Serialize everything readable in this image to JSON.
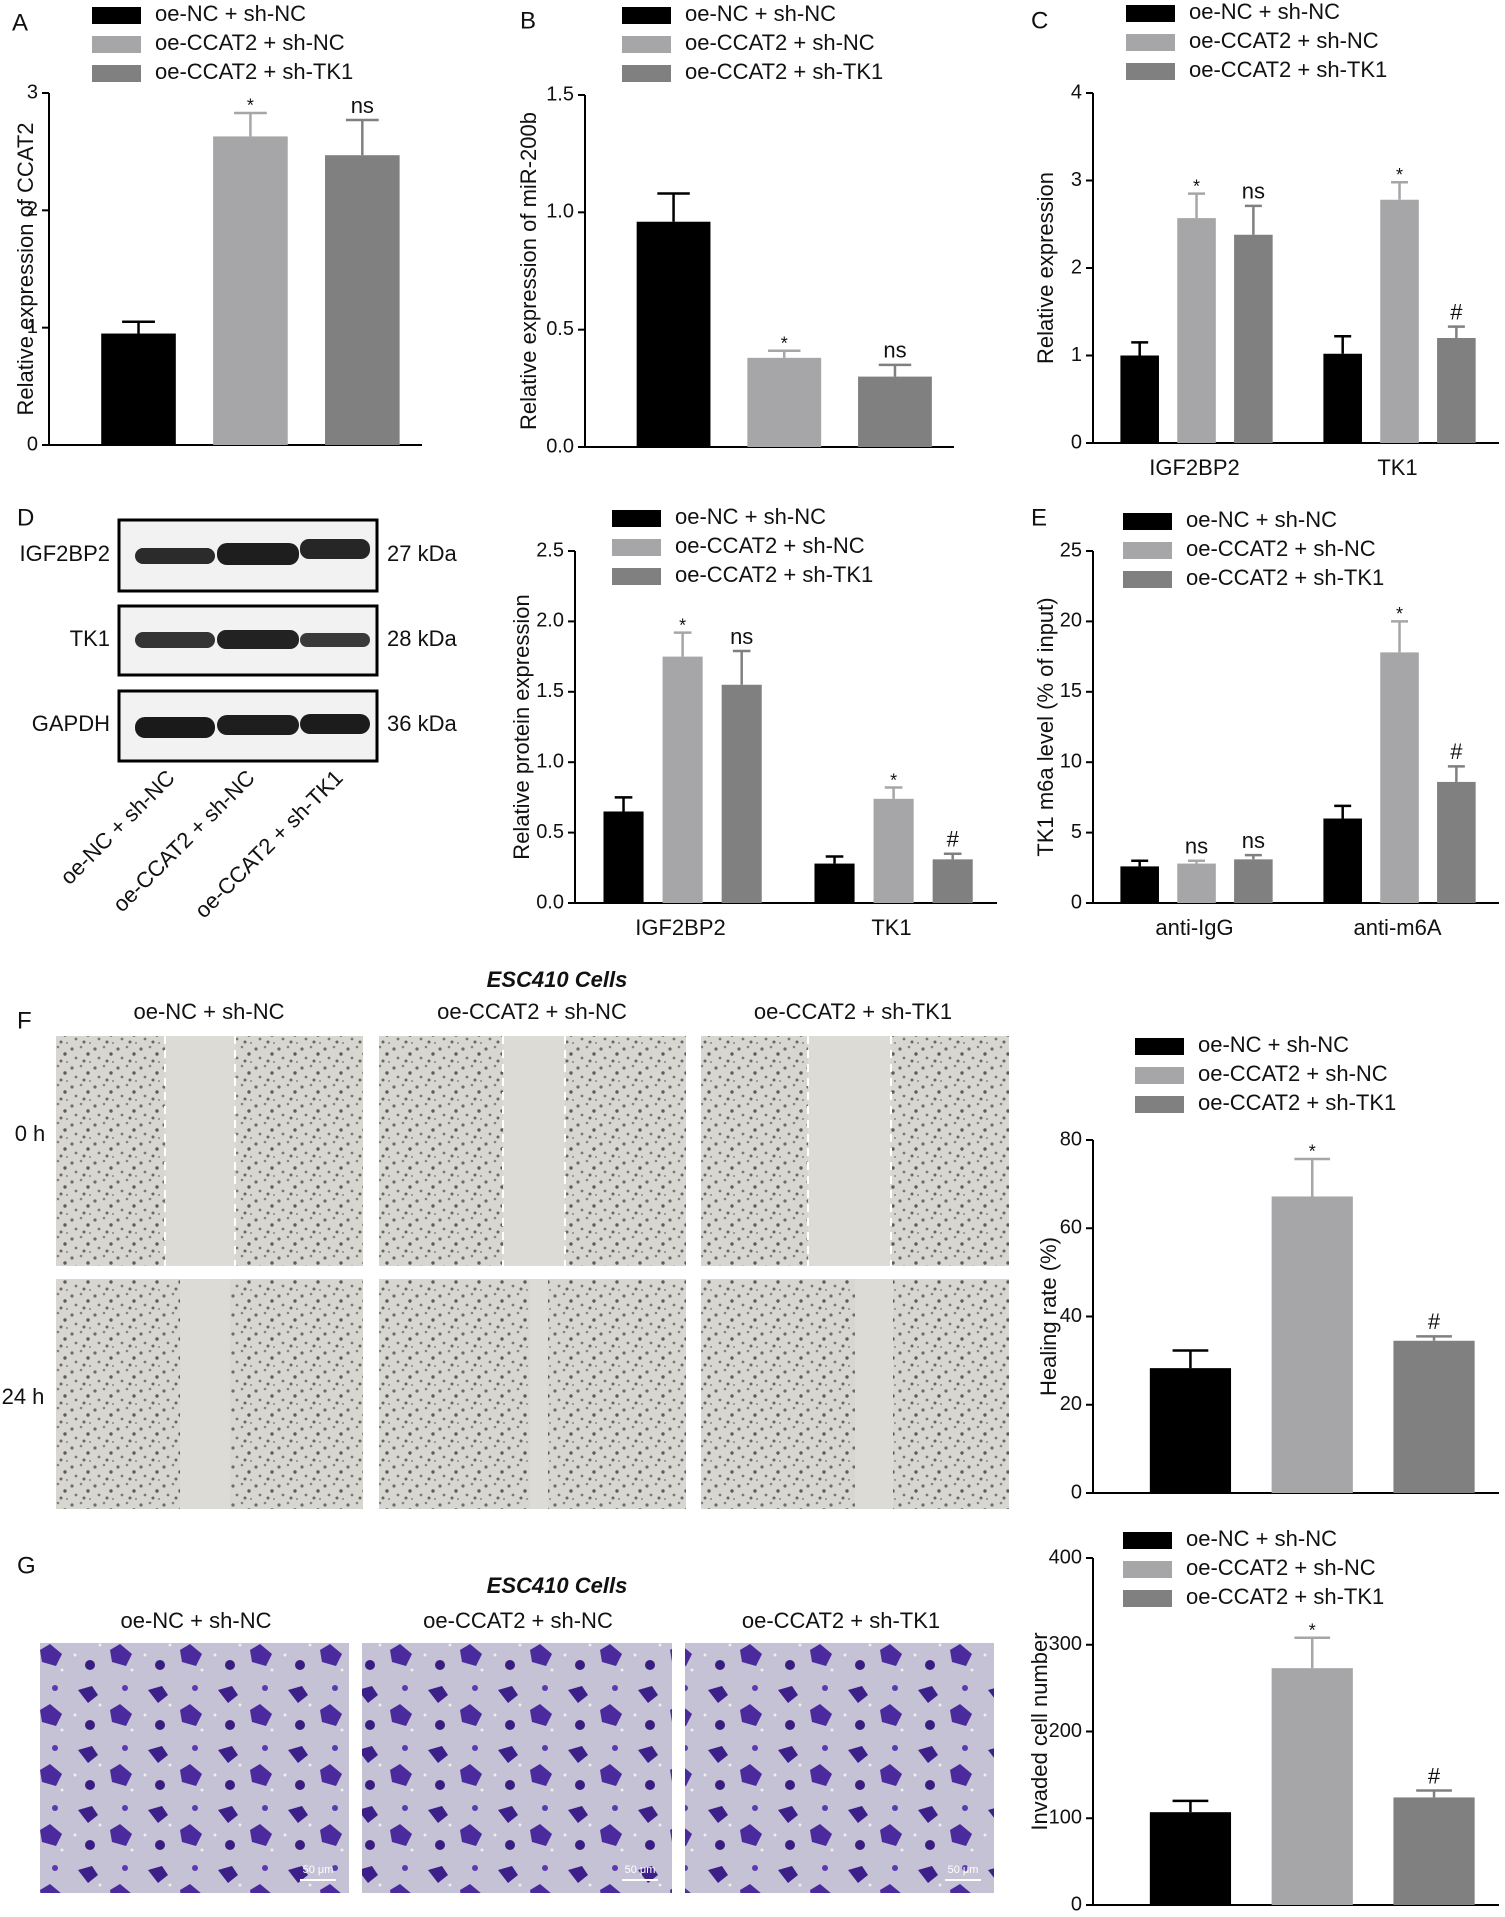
{
  "chart_data": [
    {
      "type": "bar",
      "ylabel": "Relative expression of CCAT2",
      "categories": [
        null
      ],
      "series": [
        {
          "name": "oe-NC + sh-NC",
          "color": "#000000",
          "values": [
            0.95
          ],
          "errors": [
            0.1
          ]
        },
        {
          "name": "oe-CCAT2 + sh-NC",
          "color": "#a6a6a8",
          "values": [
            2.63
          ],
          "errors": [
            0.2
          ],
          "annotations": [
            "*"
          ]
        },
        {
          "name": "oe-CCAT2 + sh-TK1",
          "color": "#808080",
          "values": [
            2.47
          ],
          "errors": [
            0.3
          ],
          "annotations": [
            "ns"
          ]
        }
      ],
      "ylim": [
        0,
        3
      ],
      "yticks": [
        0,
        1,
        2,
        3
      ]
    },
    {
      "type": "bar",
      "ylabel": "Relative expression of miR-200b",
      "categories": [
        null
      ],
      "series": [
        {
          "name": "oe-NC + sh-NC",
          "color": "#000000",
          "values": [
            0.96
          ],
          "errors": [
            0.12
          ]
        },
        {
          "name": "oe-CCAT2 + sh-NC",
          "color": "#a6a6a8",
          "values": [
            0.38
          ],
          "errors": [
            0.03
          ],
          "annotations": [
            "*"
          ]
        },
        {
          "name": "oe-CCAT2 + sh-TK1",
          "color": "#808080",
          "values": [
            0.3
          ],
          "errors": [
            0.05
          ],
          "annotations": [
            "ns"
          ]
        }
      ],
      "ylim": [
        0,
        1.5
      ],
      "yticks": [
        {
          "value": 0,
          "label": "0.0"
        },
        0.5,
        {
          "value": 1,
          "label": "1.0"
        },
        1.5
      ]
    },
    {
      "type": "bar",
      "ylabel": "Relative expression",
      "categories": [
        "IGF2BP2",
        "TK1"
      ],
      "series": [
        {
          "name": "oe-NC + sh-NC",
          "color": "#000000",
          "values": [
            1.0,
            1.02
          ],
          "errors": [
            0.15,
            0.2
          ]
        },
        {
          "name": "oe-CCAT2 + sh-NC",
          "color": "#a6a6a8",
          "values": [
            2.57,
            2.78
          ],
          "errors": [
            0.28,
            0.2
          ],
          "annotations": [
            "*",
            "*"
          ]
        },
        {
          "name": "oe-CCAT2 + sh-TK1",
          "color": "#808080",
          "values": [
            2.38,
            1.2
          ],
          "errors": [
            0.33,
            0.13
          ],
          "annotations": [
            "ns",
            "#"
          ]
        }
      ],
      "ylim": [
        0,
        4
      ],
      "yticks": [
        0,
        1,
        2,
        3,
        4
      ]
    },
    {
      "type": "bar",
      "ylabel": "Relative protein expression",
      "categories": [
        "IGF2BP2",
        "TK1"
      ],
      "series": [
        {
          "name": "oe-NC + sh-NC",
          "color": "#000000",
          "values": [
            0.65,
            0.28
          ],
          "errors": [
            0.1,
            0.05
          ]
        },
        {
          "name": "oe-CCAT2 + sh-NC",
          "color": "#a6a6a8",
          "values": [
            1.75,
            0.74
          ],
          "errors": [
            0.17,
            0.08
          ],
          "annotations": [
            "*",
            "*"
          ]
        },
        {
          "name": "oe-CCAT2 + sh-TK1",
          "color": "#808080",
          "values": [
            1.55,
            0.31
          ],
          "errors": [
            0.24,
            0.04
          ],
          "annotations": [
            "ns",
            "#"
          ]
        }
      ],
      "ylim": [
        0,
        2.5
      ],
      "yticks": [
        {
          "value": 0,
          "label": "0.0"
        },
        0.5,
        {
          "value": 1,
          "label": "1.0"
        },
        1.5,
        {
          "value": 2,
          "label": "2.0"
        },
        2.5
      ]
    },
    {
      "type": "bar",
      "ylabel": "TK1 m6a level (% of input)",
      "categories": [
        "anti-IgG",
        "anti-m6A"
      ],
      "series": [
        {
          "name": "oe-NC + sh-NC",
          "color": "#000000",
          "values": [
            2.6,
            6.0
          ],
          "errors": [
            0.4,
            0.9
          ]
        },
        {
          "name": "oe-CCAT2 + sh-NC",
          "color": "#a6a6a8",
          "values": [
            2.8,
            17.8
          ],
          "errors": [
            0.2,
            2.2
          ],
          "annotations": [
            "ns",
            "*"
          ]
        },
        {
          "name": "oe-CCAT2 + sh-TK1",
          "color": "#808080",
          "values": [
            3.1,
            8.6
          ],
          "errors": [
            0.3,
            1.1
          ],
          "annotations": [
            "ns",
            "#"
          ]
        }
      ],
      "ylim": [
        0,
        25
      ],
      "yticks": [
        0,
        5,
        10,
        15,
        20,
        25
      ]
    },
    {
      "type": "bar",
      "ylabel": "Healing rate (%)",
      "categories": [
        null
      ],
      "series": [
        {
          "name": "oe-NC + sh-NC",
          "color": "#000000",
          "values": [
            28.3
          ],
          "errors": [
            4
          ]
        },
        {
          "name": "oe-CCAT2 + sh-NC",
          "color": "#a6a6a8",
          "values": [
            67.2
          ],
          "errors": [
            8.5
          ],
          "annotations": [
            "*"
          ]
        },
        {
          "name": "oe-CCAT2 + sh-TK1",
          "color": "#808080",
          "values": [
            34.5
          ],
          "errors": [
            1
          ],
          "annotations": [
            "#"
          ]
        }
      ],
      "ylim": [
        0,
        80
      ],
      "yticks": [
        0,
        20,
        40,
        60,
        80
      ]
    },
    {
      "type": "bar",
      "ylabel": "Invaded cell number",
      "categories": [
        null
      ],
      "series": [
        {
          "name": "oe-NC + sh-NC",
          "color": "#000000",
          "values": [
            107
          ],
          "errors": [
            13
          ]
        },
        {
          "name": "oe-CCAT2 + sh-NC",
          "color": "#a6a6a8",
          "values": [
            273
          ],
          "errors": [
            35
          ],
          "annotations": [
            "*"
          ]
        },
        {
          "name": "oe-CCAT2 + sh-TK1",
          "color": "#808080",
          "values": [
            124
          ],
          "errors": [
            8
          ],
          "annotations": [
            "#"
          ]
        }
      ],
      "ylim": [
        0,
        400
      ],
      "yticks": [
        0,
        100,
        200,
        300,
        400
      ]
    }
  ],
  "panel_labels": [
    "A",
    "B",
    "C",
    "D",
    "E",
    "F",
    "G"
  ],
  "blot": {
    "proteins": [
      {
        "name": "IGF2BP2",
        "size": "27 kDa"
      },
      {
        "name": "TK1",
        "size": "28 kDa"
      },
      {
        "name": "GAPDH",
        "size": "36 kDa"
      }
    ],
    "lanes": [
      "oe-NC + sh-NC",
      "oe-CCAT2 + sh-NC",
      "oe-CCAT2 + sh-TK1"
    ]
  },
  "wound": {
    "title": "ESC410 Cells",
    "columns": [
      "oe-NC + sh-NC",
      "oe-CCAT2 + sh-NC",
      "oe-CCAT2 + sh-TK1"
    ],
    "rows": [
      "0 h",
      "24 h"
    ]
  },
  "invasion": {
    "title": "ESC410 Cells",
    "columns": [
      "oe-NC + sh-NC",
      "oe-CCAT2 + sh-NC",
      "oe-CCAT2 + sh-TK1"
    ],
    "scale": "50 μm"
  }
}
